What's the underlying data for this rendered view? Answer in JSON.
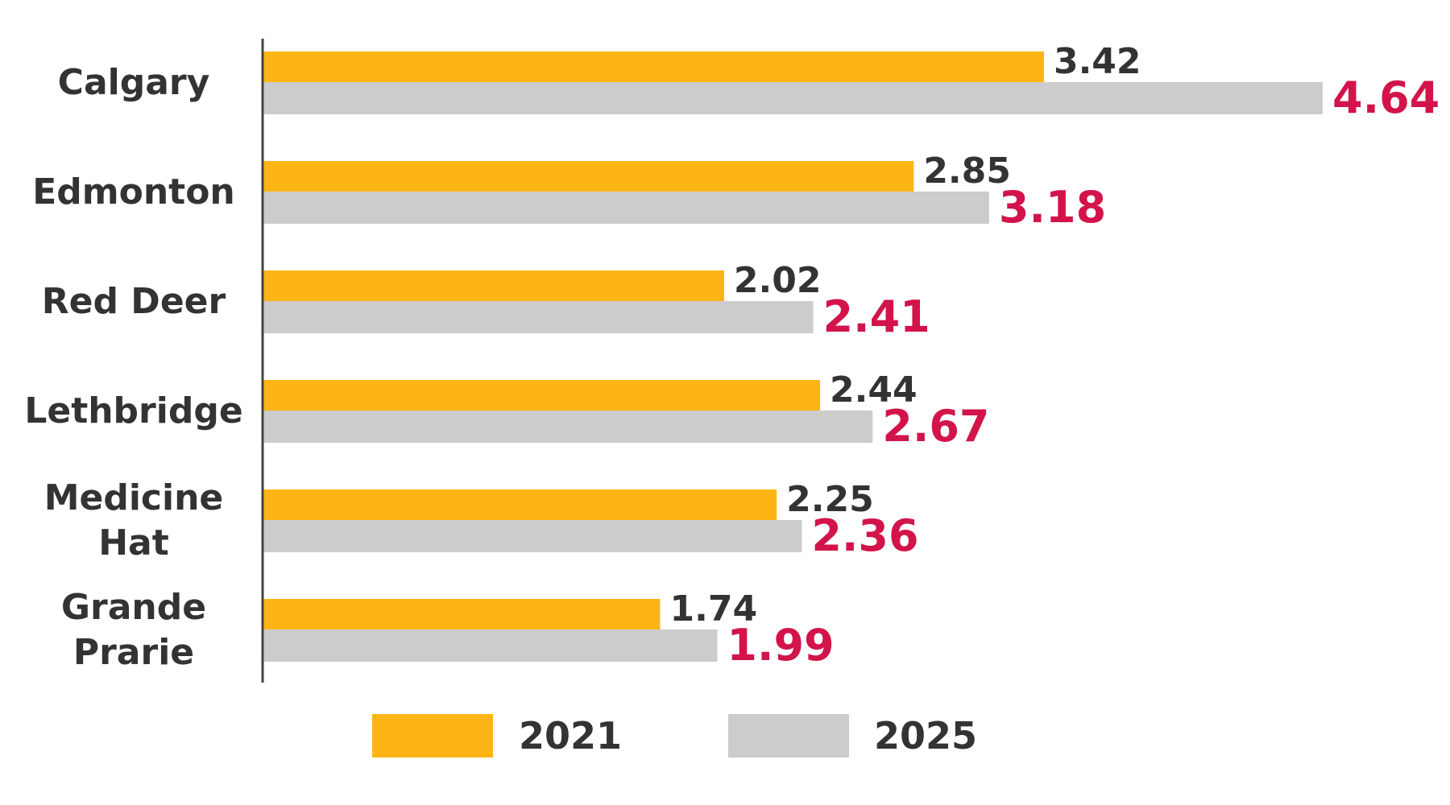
{
  "chart_data": {
    "type": "bar",
    "orientation": "horizontal",
    "categories": [
      [
        "Calgary"
      ],
      [
        "Edmonton"
      ],
      [
        "Red Deer"
      ],
      [
        "Lethbridge"
      ],
      [
        "Medicine",
        "Hat"
      ],
      [
        "Grande",
        "Prarie"
      ]
    ],
    "series": [
      {
        "name": "2021",
        "values": [
          3.42,
          2.85,
          2.02,
          2.44,
          2.25,
          1.74
        ],
        "color": "#FDB515",
        "label_color": "#333333"
      },
      {
        "name": "2025",
        "values": [
          4.64,
          3.18,
          2.41,
          2.67,
          2.36,
          1.99
        ],
        "color": "#CCCCCC",
        "label_color": "#D2144A"
      }
    ],
    "xlim": [
      0,
      4.64
    ],
    "grid": false,
    "legend": "bottom"
  }
}
